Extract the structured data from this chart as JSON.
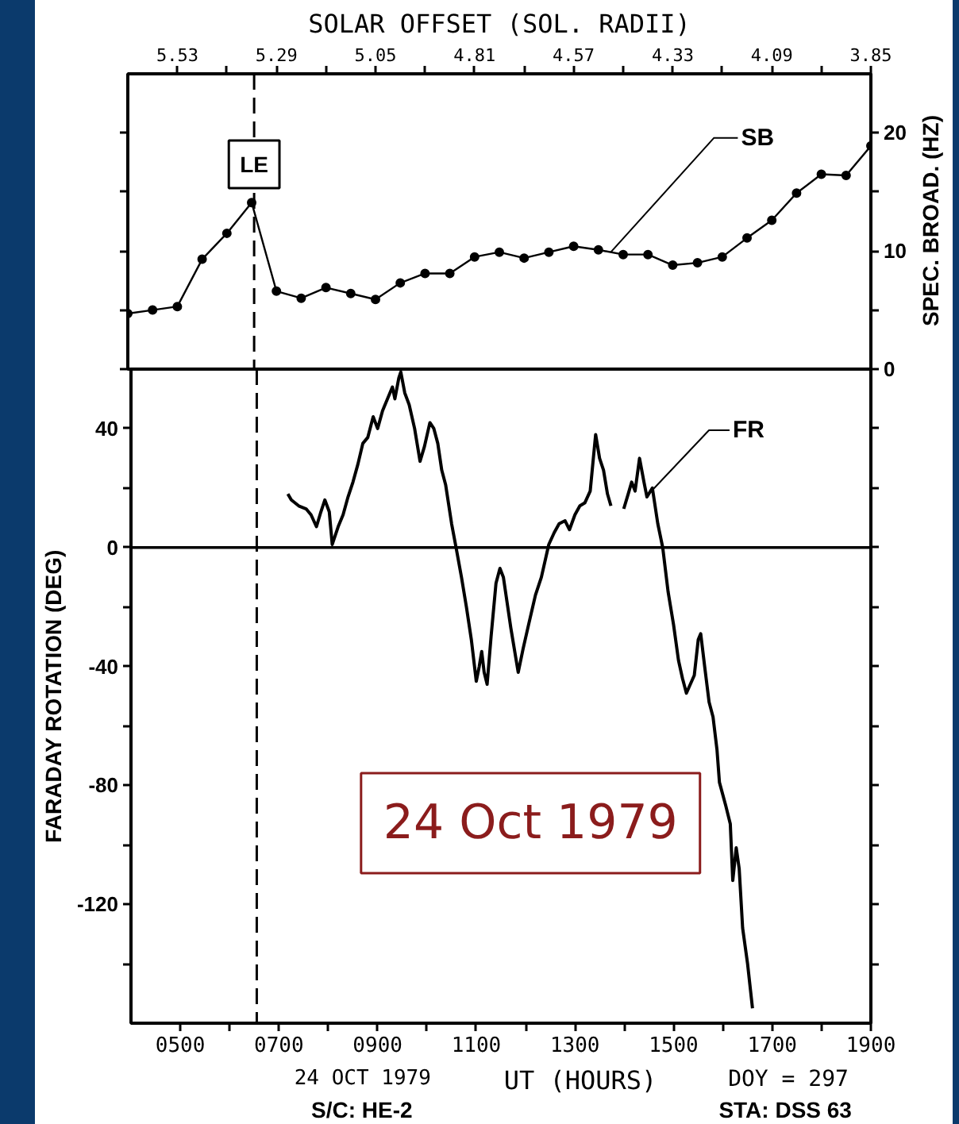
{
  "chart_data": [
    {
      "type": "line",
      "x2label": "SOLAR OFFSET (SOL. RADII)",
      "x2lim": [
        5.65,
        3.85
      ],
      "x2ticks": [
        5.53,
        {
          "value": 5.41,
          "label": null
        },
        5.29,
        {
          "value": 5.17,
          "label": null
        },
        5.05,
        {
          "value": 4.93,
          "label": null
        },
        4.81,
        {
          "value": 4.69,
          "label": null
        },
        4.57,
        {
          "value": 4.45,
          "label": null
        },
        4.33,
        {
          "value": 4.21,
          "label": null
        },
        4.09,
        {
          "value": 3.97,
          "label": null
        },
        3.85
      ],
      "xlim": [
        400,
        1900
      ],
      "ylabel": "SPEC. BROAD. (HZ)",
      "ylim": [
        0,
        25
      ],
      "yticks": [
        0,
        {
          "value": 5,
          "label": null
        },
        10,
        {
          "value": 15,
          "label": null
        },
        20
      ],
      "tick_labels": "y",
      "marker": "circle",
      "ref_lines": [
        {
          "axis": "x",
          "value": 655,
          "label": "LE",
          "line_style": "dashed"
        }
      ],
      "series": [
        {
          "name": "SB",
          "color": "#000000",
          "x": [
            400,
            450,
            500,
            550,
            600,
            650,
            700,
            750,
            800,
            850,
            900,
            950,
            1000,
            1050,
            1100,
            1150,
            1200,
            1250,
            1300,
            1350,
            1400,
            1450,
            1500,
            1550,
            1600,
            1650,
            1700,
            1750,
            1800,
            1850,
            1900
          ],
          "values": [
            4.7,
            5.0,
            5.3,
            9.3,
            11.5,
            14.1,
            6.6,
            6.0,
            6.9,
            6.4,
            5.9,
            7.3,
            8.1,
            8.1,
            9.5,
            9.9,
            9.4,
            9.9,
            10.4,
            10.1,
            9.7,
            9.7,
            8.8,
            9.0,
            9.5,
            11.1,
            12.6,
            14.9,
            16.5,
            16.4,
            18.9
          ]
        }
      ]
    },
    {
      "type": "line",
      "xlabel": "UT (HOURS)",
      "xlim": [
        400,
        1900
      ],
      "xticks": [
        {
          "value": 500,
          "label": "0500"
        },
        {
          "value": 600,
          "label": null
        },
        {
          "value": 700,
          "label": "0700"
        },
        {
          "value": 800,
          "label": null
        },
        {
          "value": 900,
          "label": "0900"
        },
        {
          "value": 1000,
          "label": null
        },
        1100,
        {
          "value": 1200,
          "label": null
        },
        1300,
        {
          "value": 1400,
          "label": null
        },
        1500,
        {
          "value": 1600,
          "label": null
        },
        1700,
        {
          "value": 1800,
          "label": null
        },
        1900
      ],
      "ylabel": "FARADAY ROTATION (DEG)",
      "ylim": [
        -160,
        60
      ],
      "yticks": [
        {
          "value": -140,
          "label": null
        },
        -120,
        {
          "value": -100,
          "label": null
        },
        -80,
        {
          "value": -60,
          "label": null
        },
        -40,
        {
          "value": -20,
          "label": null
        },
        0,
        {
          "value": 20,
          "label": null
        },
        40
      ],
      "ref_lines": [
        {
          "axis": "y",
          "value": 0
        },
        {
          "axis": "x",
          "value": 655,
          "line_style": "dashed"
        }
      ],
      "annotations": [
        "24 OCT 1979",
        "DOY = 297",
        "S/C: HE-2",
        "STA: DSS 63",
        "24 Oct 1979"
      ],
      "series": [
        {
          "name": "FR",
          "color": "#000000",
          "x": [
            718,
            725,
            740,
            755,
            765,
            776,
            785,
            793,
            802,
            808,
            820,
            830,
            840,
            850,
            860,
            870,
            880,
            891,
            900,
            910,
            920,
            930,
            935,
            943,
            947,
            955,
            964,
            975,
            986,
            995,
            1006,
            1014,
            1022,
            1030,
            1038,
            1050,
            1059,
            1070,
            1080,
            1090,
            1100,
            1106,
            1111,
            1116,
            1122,
            1130,
            1140,
            1148,
            1155,
            1170,
            1185,
            1195,
            1206,
            1220,
            1232,
            1247,
            1258,
            1268,
            1280,
            1289,
            1300,
            1310,
            1320,
            1331,
            1342,
            1350,
            1358,
            1366,
            1373,
            1385,
            1399,
            1408,
            1415,
            1422,
            1431,
            1440,
            1446,
            1457,
            1468,
            1478,
            1489,
            1500,
            1510,
            1518,
            1526,
            1534,
            1542,
            1550,
            1555,
            1563,
            1572,
            1580,
            1588,
            1593,
            1606,
            1615,
            1620,
            1627,
            1633,
            1640,
            1650,
            1660
          ],
          "values": [
            18,
            16,
            14,
            13,
            11,
            7,
            12,
            16,
            12,
            1,
            7,
            11,
            17,
            22,
            28,
            35,
            37,
            44,
            40,
            46,
            50,
            54,
            50,
            57,
            59,
            52,
            48,
            40,
            29,
            34,
            42,
            40,
            35,
            26,
            21,
            8,
            0,
            -10,
            -20,
            -31,
            -45,
            -40,
            -35,
            -42,
            -46,
            -30,
            -12,
            -7,
            -10,
            -27,
            -42,
            -34,
            -26,
            -16,
            -10,
            1,
            5,
            8,
            9,
            6,
            11,
            14,
            15,
            19,
            38,
            30,
            26,
            18,
            14,
            null,
            13,
            18,
            22,
            19,
            30,
            22,
            17,
            20,
            8,
            0,
            -15,
            -26,
            -38,
            -44,
            -49,
            -46,
            -43,
            -31,
            -29,
            -40,
            -52,
            -57,
            -68,
            -79,
            -87,
            -93,
            -112,
            -101,
            -108,
            -128,
            -140,
            -155
          ]
        }
      ]
    }
  ]
}
